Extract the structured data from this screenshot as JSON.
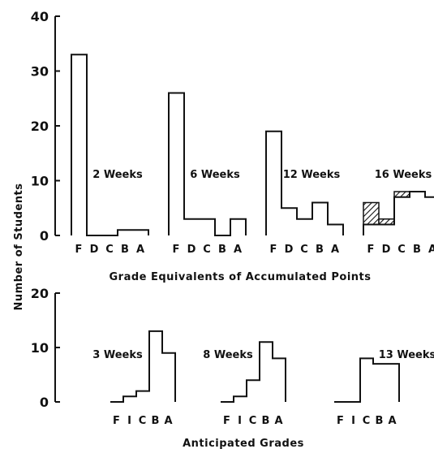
{
  "ylabel": "Number of Students",
  "chart_data": [
    {
      "type": "bar",
      "panel": "top",
      "xlabel": "Grade Equivalents of Accumulated Points",
      "ylim": [
        0,
        40
      ],
      "yticks": [
        "0",
        "10",
        "20",
        "30",
        "40"
      ],
      "groups": [
        {
          "label": "2 Weeks",
          "categories": [
            "F",
            "D",
            "C",
            "B",
            "A"
          ],
          "values": [
            33,
            0,
            0,
            1,
            1
          ]
        },
        {
          "label": "6 Weeks",
          "categories": [
            "F",
            "D",
            "C",
            "B",
            "A"
          ],
          "values": [
            26,
            3,
            3,
            0,
            3
          ]
        },
        {
          "label": "12 Weeks",
          "categories": [
            "F",
            "D",
            "C",
            "B",
            "A"
          ],
          "values": [
            19,
            5,
            3,
            6,
            2
          ]
        },
        {
          "label": "16 Weeks",
          "categories": [
            "F",
            "D",
            "C",
            "B",
            "A"
          ],
          "values": [
            2,
            2,
            7,
            8,
            7
          ],
          "hatched": [
            6,
            3,
            8
          ]
        }
      ]
    },
    {
      "type": "bar",
      "panel": "bottom",
      "xlabel": "Anticipated Grades",
      "ylim": [
        0,
        20
      ],
      "yticks": [
        "0",
        "10",
        "20"
      ],
      "groups": [
        {
          "label": "3 Weeks",
          "categories": [
            "F",
            "I",
            "C",
            "B",
            "A"
          ],
          "values": [
            0,
            1,
            2,
            13,
            9
          ],
          "hatched": [
            0,
            1
          ]
        },
        {
          "label": "8 Weeks",
          "categories": [
            "F",
            "I",
            "C",
            "B",
            "A"
          ],
          "values": [
            0,
            1,
            4,
            11,
            8
          ],
          "hatched": [
            0,
            1
          ]
        },
        {
          "label": "13 Weeks",
          "categories": [
            "F",
            "I",
            "C",
            "B",
            "A"
          ],
          "values": [
            0,
            0,
            8,
            7,
            7
          ]
        }
      ]
    }
  ]
}
